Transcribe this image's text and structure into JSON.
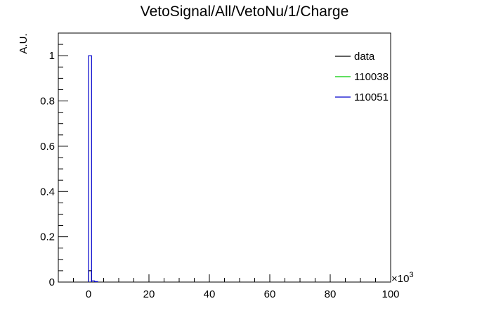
{
  "chart_data": {
    "type": "histogram",
    "title": "VetoSignal/All/VetoNu/1/Charge",
    "ylabel": "A.U.",
    "xlabel": "",
    "x_multiplier_label": "×10",
    "x_multiplier_exponent": "3",
    "xlim": [
      -10,
      100
    ],
    "ylim": [
      0,
      1.1
    ],
    "x_ticks": [
      0,
      20,
      40,
      60,
      80,
      100
    ],
    "y_ticks": [
      0,
      0.2,
      0.4,
      0.6,
      0.8,
      1
    ],
    "x_tick_labels": [
      "0",
      "20",
      "40",
      "60",
      "80",
      "100"
    ],
    "y_tick_labels": [
      "0",
      "0.2",
      "0.4",
      "0.6",
      "0.8",
      "1"
    ],
    "legend_position": "top-right",
    "series": [
      {
        "name": "data",
        "color": "#000000",
        "bins": [
          {
            "x0": 0,
            "x1": 1,
            "value": 0.05
          }
        ]
      },
      {
        "name": "110038",
        "color": "#00cc00",
        "bins": []
      },
      {
        "name": "110051",
        "color": "#0000cc",
        "bins": [
          {
            "x0": 0,
            "x1": 1,
            "value": 1.0
          },
          {
            "x0": 1,
            "x1": 2,
            "value": 0.005
          },
          {
            "x0": 2,
            "x1": 3,
            "value": 0.002
          }
        ]
      }
    ]
  }
}
